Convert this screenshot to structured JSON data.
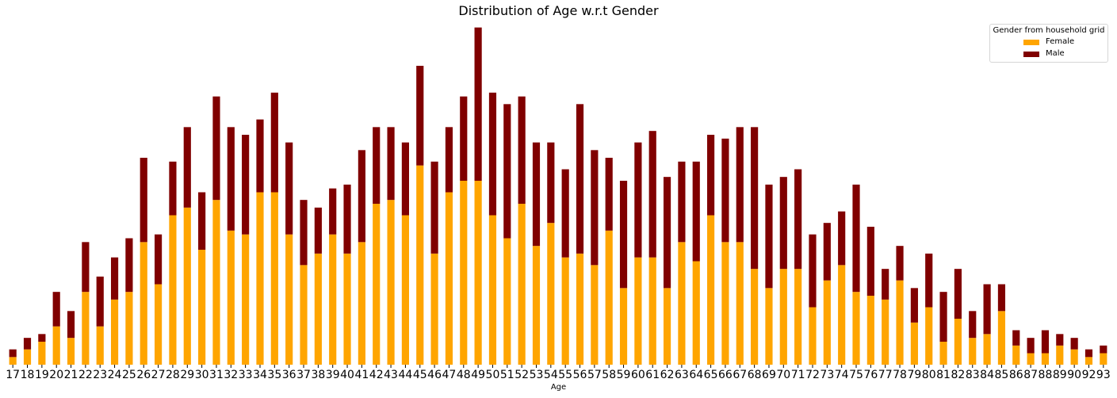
{
  "chart_data": {
    "type": "bar",
    "stacked": true,
    "title": "Distribution of Age w.r.t Gender",
    "xlabel": "Age",
    "ylabel": "",
    "categories": [
      "17",
      "18",
      "19",
      "20",
      "21",
      "22",
      "23",
      "24",
      "25",
      "26",
      "27",
      "28",
      "29",
      "30",
      "31",
      "32",
      "33",
      "34",
      "35",
      "36",
      "37",
      "38",
      "39",
      "40",
      "41",
      "42",
      "43",
      "44",
      "45",
      "46",
      "47",
      "48",
      "49",
      "50",
      "51",
      "52",
      "53",
      "54",
      "55",
      "56",
      "57",
      "58",
      "59",
      "60",
      "61",
      "62",
      "63",
      "64",
      "65",
      "66",
      "67",
      "68",
      "69",
      "70",
      "71",
      "72",
      "73",
      "74",
      "75",
      "76",
      "77",
      "78",
      "79",
      "80",
      "81",
      "82",
      "83",
      "84",
      "85",
      "86",
      "87",
      "88",
      "89",
      "90",
      "92",
      "93"
    ],
    "series": [
      {
        "name": "Female",
        "color": "#FFA500",
        "values": [
          2,
          4,
          6,
          10,
          7,
          19,
          10,
          17,
          19,
          32,
          21,
          39,
          41,
          30,
          43,
          35,
          34,
          45,
          45,
          34,
          26,
          29,
          34,
          29,
          32,
          42,
          43,
          39,
          52,
          29,
          45,
          48,
          48,
          39,
          33,
          42,
          31,
          37,
          28,
          29,
          26,
          35,
          20,
          28,
          28,
          20,
          32,
          27,
          39,
          32,
          32,
          25,
          20,
          25,
          25,
          15,
          22,
          26,
          19,
          18,
          17,
          22,
          11,
          15,
          6,
          12,
          7,
          8,
          14,
          5,
          3,
          3,
          5,
          4,
          2,
          3
        ]
      },
      {
        "name": "Male",
        "color": "#800000",
        "values": [
          2,
          3,
          2,
          9,
          7,
          13,
          13,
          11,
          14,
          22,
          13,
          14,
          21,
          15,
          27,
          27,
          26,
          19,
          26,
          24,
          17,
          12,
          12,
          18,
          24,
          20,
          19,
          19,
          26,
          24,
          17,
          22,
          40,
          32,
          35,
          28,
          27,
          21,
          23,
          39,
          30,
          19,
          28,
          30,
          33,
          29,
          21,
          26,
          21,
          27,
          30,
          37,
          27,
          24,
          26,
          19,
          15,
          14,
          28,
          18,
          8,
          9,
          9,
          14,
          13,
          13,
          7,
          13,
          7,
          4,
          4,
          6,
          3,
          3,
          2,
          2
        ]
      }
    ],
    "ylim": [
      0,
      90
    ],
    "legend": {
      "title": "Gender from household grid",
      "placement": "top-right"
    },
    "grid": false
  }
}
